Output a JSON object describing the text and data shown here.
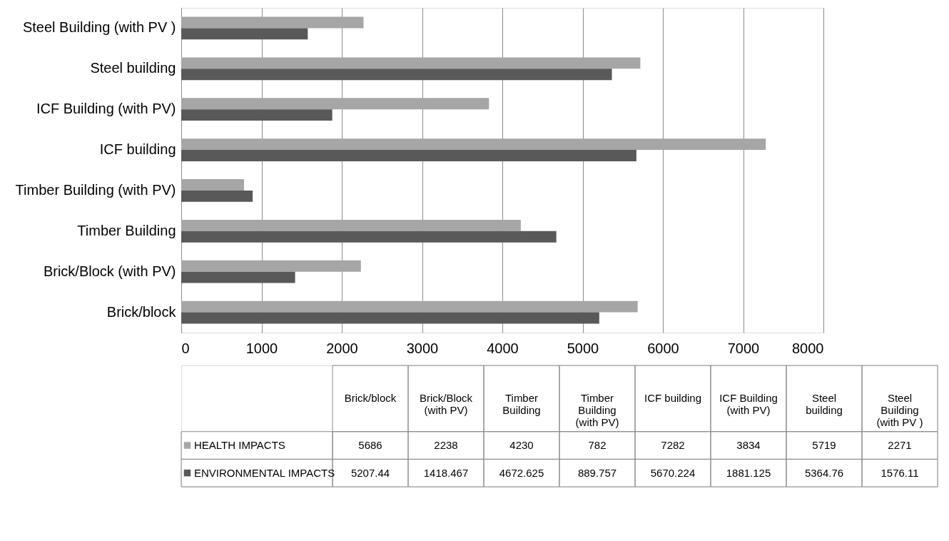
{
  "chart_data": [
    {
      "type": "bar",
      "orientation": "horizontal",
      "categories": [
        "Steel Building (with PV )",
        "Steel building",
        "ICF  Building (with PV)",
        "ICF building",
        "Timber Building (with PV)",
        "Timber Building",
        "Brick/Block (with PV)",
        "Brick/block"
      ],
      "series": [
        {
          "color": "#a6a6a6",
          "values": [
            2271,
            5719,
            3834,
            7282,
            782,
            4230,
            2238,
            5686
          ]
        },
        {
          "color": "#595959",
          "values": [
            1576.11,
            5364.76,
            1881.125,
            5670.224,
            889.757,
            4672.625,
            1418.467,
            5207.44
          ]
        }
      ],
      "xlim": [
        0,
        8000
      ],
      "xticks": [
        0,
        1000,
        2000,
        3000,
        4000,
        5000,
        6000,
        7000,
        8000
      ],
      "grid": "x"
    },
    {
      "type": "other",
      "categories": [
        "Brick/block",
        "Brick/Block (with PV)",
        "Timber Building",
        "Timber Building (with PV)",
        "ICF building",
        "ICF Building (with PV)",
        "Steel building",
        "Steel Building (with PV )"
      ],
      "series": [
        {
          "name": "HEALTH IMPACTS",
          "color": "#a6a6a6",
          "values": [
            5686,
            2238,
            4230,
            782,
            7282,
            3834,
            5719,
            2271
          ]
        },
        {
          "name": "ENVIRONMENTAL IMPACTS",
          "color": "#595959",
          "values": [
            5207.44,
            1418.467,
            4672.625,
            889.757,
            5670.224,
            1881.125,
            5364.76,
            1576.11
          ]
        }
      ],
      "legend": "left",
      "data_labels": true
    }
  ]
}
